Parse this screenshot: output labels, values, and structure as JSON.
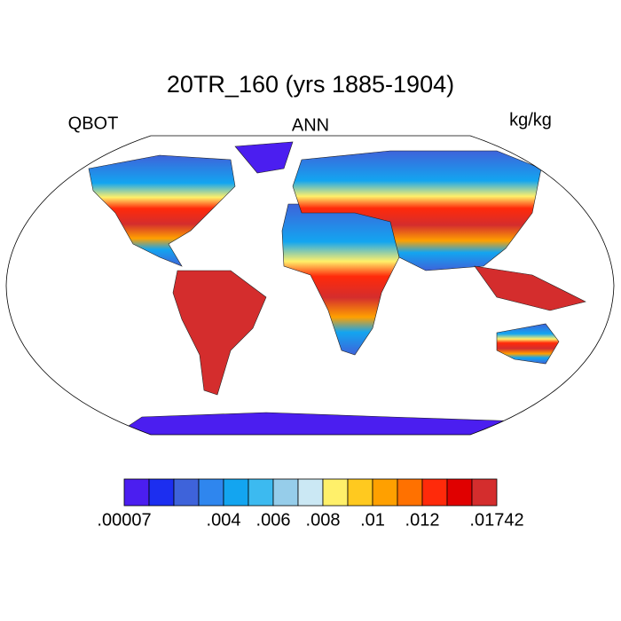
{
  "title": "20TR_160 (yrs 1885-1904)",
  "left_label": "QBOT",
  "center_label": "ANN",
  "right_label": "kg/kg",
  "colorbar": {
    "colors": [
      "#4b1ef0",
      "#1c2ef0",
      "#3e63da",
      "#2f86ee",
      "#13a5f0",
      "#3cbaf0",
      "#96cdea",
      "#cbe8f4",
      "#fff06a",
      "#ffc91f",
      "#ffa000",
      "#ff7100",
      "#ff2a0a",
      "#e00000",
      "#d42d2d"
    ],
    "ticks": [
      {
        "value": 7e-05,
        "label": ".00007"
      },
      {
        "value": 0.004,
        "label": ".004"
      },
      {
        "value": 0.006,
        "label": ".006"
      },
      {
        "value": 0.008,
        "label": ".008"
      },
      {
        "value": 0.01,
        "label": ".01"
      },
      {
        "value": 0.012,
        "label": ".012"
      },
      {
        "value": 0.01742,
        "label": ".01742"
      }
    ]
  }
}
